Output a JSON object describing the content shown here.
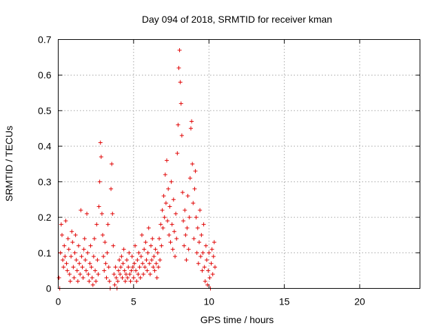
{
  "chart_data": {
    "type": "scatter",
    "title": "Day 094 of 2018, SRMTID for receiver kman",
    "xlabel": "GPS time / hours",
    "ylabel": "SRMTID / TECUs",
    "xlim": [
      0,
      24
    ],
    "ylim": [
      0,
      0.7
    ],
    "xticks": [
      0,
      5,
      10,
      15,
      20
    ],
    "yticks": [
      0,
      0.1,
      0.2,
      0.3,
      0.4,
      0.5,
      0.6,
      0.7
    ],
    "xtick_labels": [
      "0",
      "5",
      "10",
      "15",
      "20"
    ],
    "ytick_labels": [
      "0",
      "0.1",
      "0.2",
      "0.3",
      "0.4",
      "0.5",
      "0.6",
      "0.7"
    ],
    "grid": true,
    "marker": "+",
    "color": "#e00000",
    "series": [
      {
        "name": "SRMTID",
        "points": [
          [
            0.05,
            0.03
          ],
          [
            0.1,
            0.0
          ],
          [
            0.15,
            0.1
          ],
          [
            0.2,
            0.18
          ],
          [
            0.25,
            0.15
          ],
          [
            0.3,
            0.08
          ],
          [
            0.35,
            0.06
          ],
          [
            0.4,
            0.12
          ],
          [
            0.45,
            0.09
          ],
          [
            0.5,
            0.19
          ],
          [
            0.55,
            0.07
          ],
          [
            0.6,
            0.05
          ],
          [
            0.65,
            0.14
          ],
          [
            0.7,
            0.11
          ],
          [
            0.75,
            0.04
          ],
          [
            0.8,
            0.02
          ],
          [
            0.85,
            0.09
          ],
          [
            0.9,
            0.16
          ],
          [
            0.95,
            0.13
          ],
          [
            1.0,
            0.06
          ],
          [
            1.05,
            0.03
          ],
          [
            1.1,
            0.1
          ],
          [
            1.15,
            0.15
          ],
          [
            1.2,
            0.08
          ],
          [
            1.25,
            0.05
          ],
          [
            1.3,
            0.02
          ],
          [
            1.35,
            0.12
          ],
          [
            1.4,
            0.07
          ],
          [
            1.45,
            0.04
          ],
          [
            1.5,
            0.22
          ],
          [
            1.55,
            0.09
          ],
          [
            1.6,
            0.06
          ],
          [
            1.65,
            0.03
          ],
          [
            1.7,
            0.11
          ],
          [
            1.75,
            0.14
          ],
          [
            1.8,
            0.08
          ],
          [
            1.85,
            0.05
          ],
          [
            1.9,
            0.21
          ],
          [
            1.95,
            0.1
          ],
          [
            2.0,
            0.04
          ],
          [
            2.05,
            0.02
          ],
          [
            2.1,
            0.07
          ],
          [
            2.15,
            0.12
          ],
          [
            2.2,
            0.06
          ],
          [
            2.25,
            0.03
          ],
          [
            2.3,
            0.01
          ],
          [
            2.35,
            0.09
          ],
          [
            2.4,
            0.14
          ],
          [
            2.45,
            0.05
          ],
          [
            2.5,
            0.02
          ],
          [
            2.55,
            0.18
          ],
          [
            2.6,
            0.08
          ],
          [
            2.65,
            0.04
          ],
          [
            2.7,
            0.23
          ],
          [
            2.75,
            0.3
          ],
          [
            2.8,
            0.41
          ],
          [
            2.85,
            0.37
          ],
          [
            2.9,
            0.21
          ],
          [
            2.95,
            0.15
          ],
          [
            3.0,
            0.09
          ],
          [
            3.05,
            0.05
          ],
          [
            3.1,
            0.13
          ],
          [
            3.15,
            0.07
          ],
          [
            3.2,
            0.03
          ],
          [
            3.25,
            0.1
          ],
          [
            3.3,
            0.18
          ],
          [
            3.35,
            0.06
          ],
          [
            3.4,
            0.02
          ],
          [
            3.45,
            0.0
          ],
          [
            3.5,
            0.28
          ],
          [
            3.55,
            0.35
          ],
          [
            3.6,
            0.21
          ],
          [
            3.65,
            0.12
          ],
          [
            3.7,
            0.04
          ],
          [
            3.75,
            0.01
          ],
          [
            3.8,
            0.06
          ],
          [
            3.85,
            0.03
          ],
          [
            3.9,
            0.0
          ],
          [
            3.95,
            0.02
          ],
          [
            4.0,
            0.05
          ],
          [
            4.05,
            0.08
          ],
          [
            4.1,
            0.04
          ],
          [
            4.15,
            0.06
          ],
          [
            4.2,
            0.09
          ],
          [
            4.25,
            0.03
          ],
          [
            4.3,
            0.07
          ],
          [
            4.35,
            0.11
          ],
          [
            4.4,
            0.05
          ],
          [
            4.45,
            0.02
          ],
          [
            4.5,
            0.04
          ],
          [
            4.55,
            0.08
          ],
          [
            4.6,
            0.03
          ],
          [
            4.65,
            0.06
          ],
          [
            4.7,
            0.1
          ],
          [
            4.75,
            0.04
          ],
          [
            4.8,
            0.02
          ],
          [
            4.85,
            0.05
          ],
          [
            4.9,
            0.09
          ],
          [
            4.95,
            0.06
          ],
          [
            5.0,
            0.03
          ],
          [
            5.05,
            0.07
          ],
          [
            5.1,
            0.12
          ],
          [
            5.15,
            0.05
          ],
          [
            5.2,
            0.02
          ],
          [
            5.25,
            0.08
          ],
          [
            5.3,
            0.04
          ],
          [
            5.35,
            0.1
          ],
          [
            5.4,
            0.06
          ],
          [
            5.45,
            0.03
          ],
          [
            5.5,
            0.09
          ],
          [
            5.55,
            0.15
          ],
          [
            5.6,
            0.07
          ],
          [
            5.65,
            0.04
          ],
          [
            5.7,
            0.11
          ],
          [
            5.75,
            0.06
          ],
          [
            5.8,
            0.13
          ],
          [
            5.85,
            0.08
          ],
          [
            5.9,
            0.05
          ],
          [
            5.95,
            0.1
          ],
          [
            6.0,
            0.17
          ],
          [
            6.05,
            0.07
          ],
          [
            6.1,
            0.04
          ],
          [
            6.15,
            0.12
          ],
          [
            6.2,
            0.08
          ],
          [
            6.25,
            0.14
          ],
          [
            6.3,
            0.06
          ],
          [
            6.35,
            0.09
          ],
          [
            6.4,
            0.05
          ],
          [
            6.45,
            0.11
          ],
          [
            6.5,
            0.07
          ],
          [
            6.55,
            0.03
          ],
          [
            6.6,
            0.1
          ],
          [
            6.65,
            0.06
          ],
          [
            6.7,
            0.14
          ],
          [
            6.75,
            0.08
          ],
          [
            6.8,
            0.18
          ],
          [
            6.85,
            0.12
          ],
          [
            6.9,
            0.22
          ],
          [
            6.95,
            0.17
          ],
          [
            7.0,
            0.26
          ],
          [
            7.05,
            0.2
          ],
          [
            7.1,
            0.32
          ],
          [
            7.15,
            0.24
          ],
          [
            7.2,
            0.36
          ],
          [
            7.25,
            0.19
          ],
          [
            7.3,
            0.28
          ],
          [
            7.35,
            0.15
          ],
          [
            7.4,
            0.23
          ],
          [
            7.45,
            0.13
          ],
          [
            7.5,
            0.3
          ],
          [
            7.55,
            0.18
          ],
          [
            7.6,
            0.11
          ],
          [
            7.65,
            0.25
          ],
          [
            7.7,
            0.16
          ],
          [
            7.75,
            0.09
          ],
          [
            7.8,
            0.21
          ],
          [
            7.85,
            0.14
          ],
          [
            7.9,
            0.38
          ],
          [
            7.95,
            0.46
          ],
          [
            8.0,
            0.62
          ],
          [
            8.05,
            0.67
          ],
          [
            8.1,
            0.58
          ],
          [
            8.15,
            0.52
          ],
          [
            8.2,
            0.43
          ],
          [
            8.25,
            0.27
          ],
          [
            8.3,
            0.19
          ],
          [
            8.35,
            0.12
          ],
          [
            8.4,
            0.22
          ],
          [
            8.45,
            0.15
          ],
          [
            8.5,
            0.08
          ],
          [
            8.55,
            0.17
          ],
          [
            8.6,
            0.26
          ],
          [
            8.65,
            0.11
          ],
          [
            8.7,
            0.2
          ],
          [
            8.75,
            0.31
          ],
          [
            8.8,
            0.45
          ],
          [
            8.85,
            0.47
          ],
          [
            8.9,
            0.35
          ],
          [
            8.95,
            0.24
          ],
          [
            9.0,
            0.14
          ],
          [
            9.05,
            0.28
          ],
          [
            9.1,
            0.33
          ],
          [
            9.15,
            0.2
          ],
          [
            9.2,
            0.1
          ],
          [
            9.25,
            0.17
          ],
          [
            9.3,
            0.07
          ],
          [
            9.35,
            0.13
          ],
          [
            9.4,
            0.22
          ],
          [
            9.45,
            0.09
          ],
          [
            9.5,
            0.15
          ],
          [
            9.55,
            0.05
          ],
          [
            9.6,
            0.1
          ],
          [
            9.65,
            0.18
          ],
          [
            9.7,
            0.06
          ],
          [
            9.75,
            0.02
          ],
          [
            9.8,
            0.12
          ],
          [
            9.85,
            0.08
          ],
          [
            9.9,
            0.01
          ],
          [
            9.95,
            0.05
          ],
          [
            10.0,
            0.1
          ],
          [
            10.05,
            0.03
          ],
          [
            10.1,
            0.0
          ],
          [
            10.15,
            0.07
          ],
          [
            10.2,
            0.11
          ],
          [
            10.25,
            0.04
          ],
          [
            10.3,
            0.09
          ],
          [
            10.35,
            0.13
          ],
          [
            10.4,
            0.06
          ]
        ]
      }
    ]
  }
}
